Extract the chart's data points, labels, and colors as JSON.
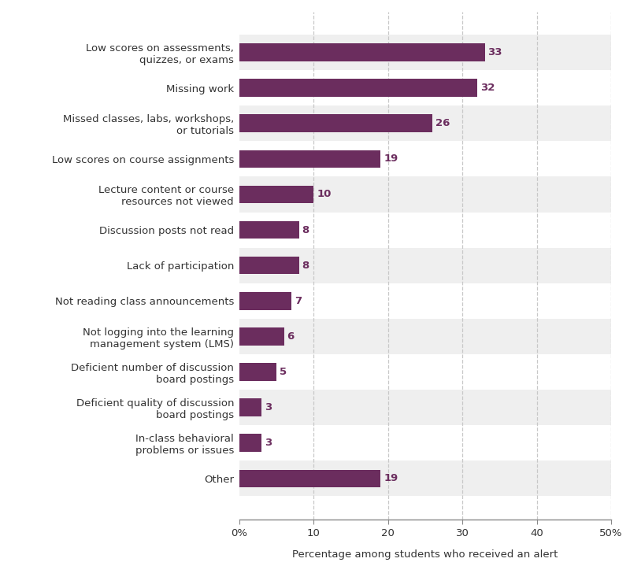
{
  "categories": [
    "Low scores on assessments,\nquizzes, or exams",
    "Missing work",
    "Missed classes, labs, workshops,\nor tutorials",
    "Low scores on course assignments",
    "Lecture content or course\nresources not viewed",
    "Discussion posts not read",
    "Lack of participation",
    "Not reading class announcements",
    "Not logging into the learning\nmanagement system (LMS)",
    "Deficient number of discussion\nboard postings",
    "Deficient quality of discussion\nboard postings",
    "In-class behavioral\nproblems or issues",
    "Other"
  ],
  "values": [
    33,
    32,
    26,
    19,
    10,
    8,
    8,
    7,
    6,
    5,
    3,
    3,
    19
  ],
  "bar_color": "#6b2d5e",
  "bg_color_odd": "#efefef",
  "bg_color_even": "#ffffff",
  "xlabel": "Percentage among students who received an alert",
  "xlim": [
    0,
    50
  ],
  "xtick_labels": [
    "0%",
    "10",
    "20",
    "30",
    "40",
    "50%"
  ],
  "xtick_values": [
    0,
    10,
    20,
    30,
    40,
    50
  ],
  "grid_color": "#c8c8c8",
  "label_fontsize": 9.5,
  "value_fontsize": 9.5,
  "xlabel_fontsize": 9.5,
  "text_color": "#333333",
  "value_color": "#6b2d5e",
  "bar_height": 0.5,
  "figsize": [
    8.0,
    7.33
  ],
  "dpi": 100
}
